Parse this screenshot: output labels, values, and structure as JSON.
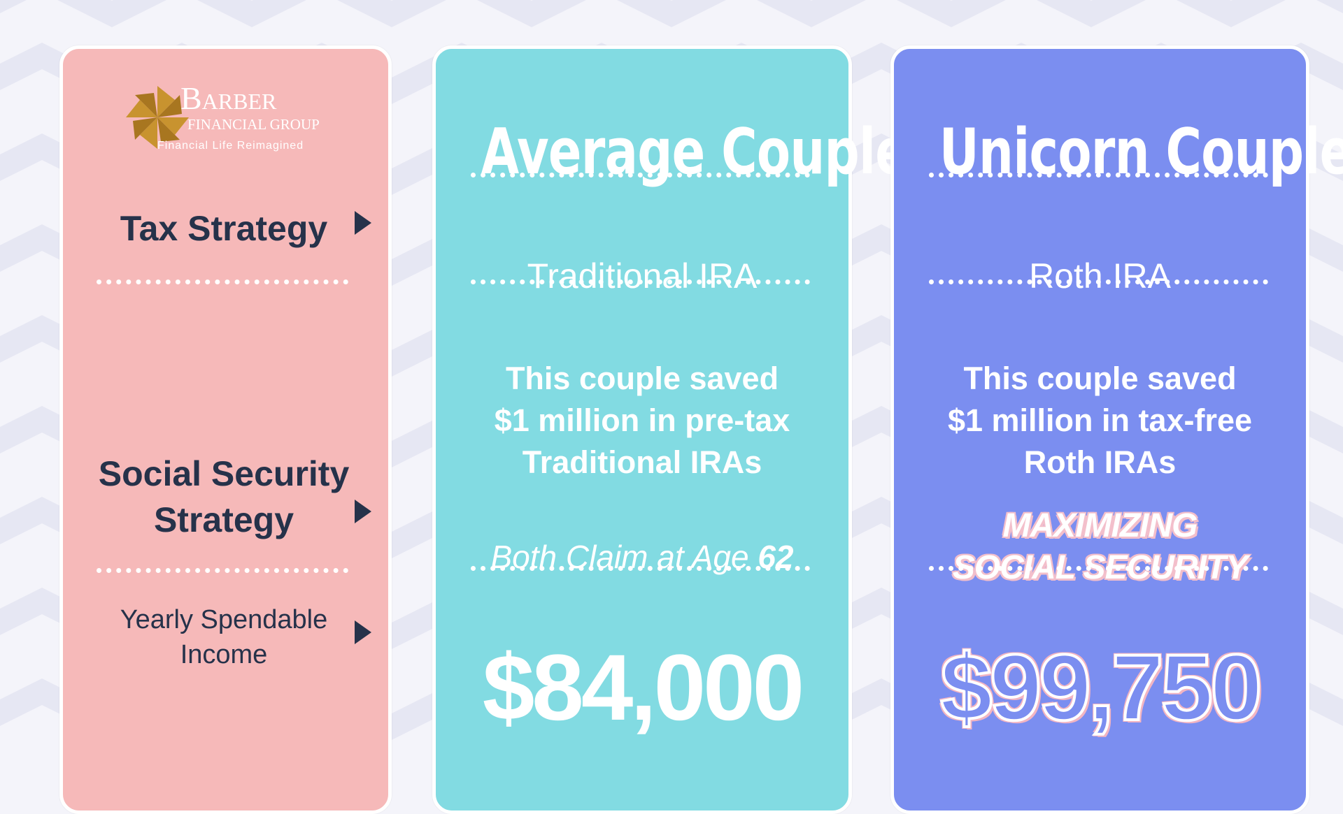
{
  "logo": {
    "name_main": "Barber",
    "name_sub": "FINANCIAL GROUP",
    "tagline": "Financial Life Reimagined"
  },
  "left_column": {
    "row1_label": "Tax Strategy",
    "row2_label_line1": "Social Security",
    "row2_label_line2": "Strategy",
    "row3_label_line1": "Yearly Spendable",
    "row3_label_line2": "Income"
  },
  "middle_column": {
    "title": "Average Couple",
    "tax_strategy": "Traditional IRA",
    "desc_line1": "This couple saved",
    "desc_line2": "$1 million in pre-tax",
    "desc_line3": "Traditional IRAs",
    "claim_prefix": "Both Claim at Age ",
    "claim_age": "62",
    "income": "$84,000"
  },
  "right_column": {
    "title": "Unicorn Couple",
    "tax_strategy": "Roth IRA",
    "desc_line1": "This couple saved",
    "desc_line2": "$1 million in tax-free",
    "desc_line3": "Roth IRAs",
    "strategy_line1": "MAXIMIZING",
    "strategy_line2": "SOCIAL SECURITY",
    "income": "$99,750"
  },
  "colors": {
    "left_card": "#f6b9b9",
    "middle_card": "#82dbe2",
    "right_card": "#7b8ef0",
    "dark_text": "#26324a",
    "logo_gold": "#c8932f"
  }
}
